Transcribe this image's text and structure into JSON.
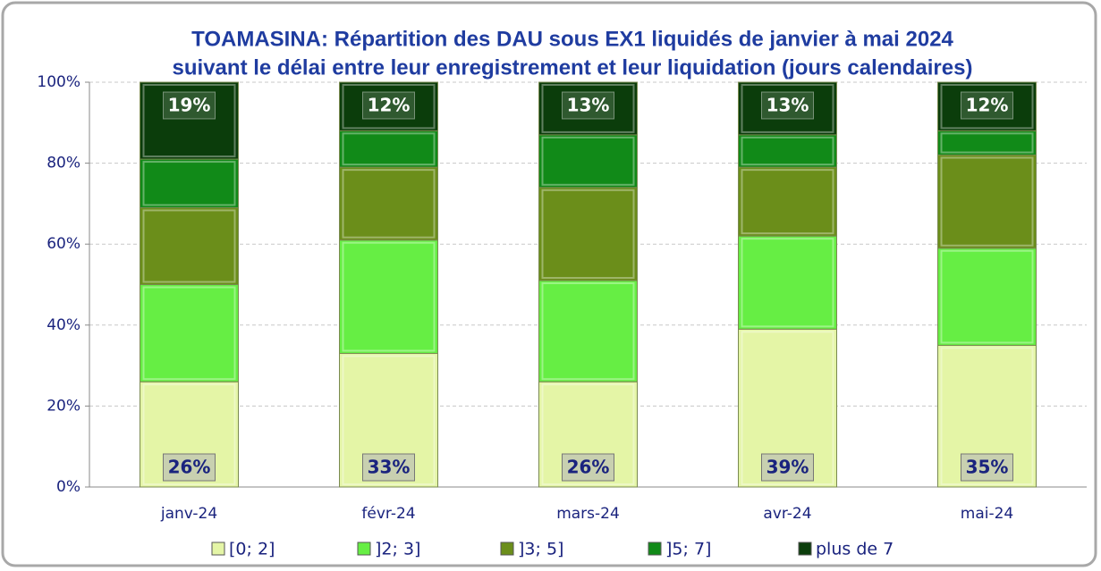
{
  "chart_data": {
    "type": "stacked_bar",
    "title": "TOAMASINA: Répartition des DAU sous EX1 liquidés de janvier à mai 2024",
    "subtitle": "suivant le délai entre leur enregistrement et leur liquidation (jours calendaires)",
    "categories": [
      "janv-24",
      "févr-24",
      "mars-24",
      "avr-24",
      "mai-24"
    ],
    "series": [
      {
        "name": "[0; 2]",
        "color": "#e4f5a6",
        "values": [
          26,
          33,
          26,
          39,
          35
        ],
        "value_labels": [
          "26%",
          "33%",
          "26%",
          "39%",
          "35%"
        ]
      },
      {
        "name": "]2; 3]",
        "color": "#66ee44",
        "values": [
          24,
          28,
          25,
          23,
          24
        ]
      },
      {
        "name": "]3; 5]",
        "color": "#6b8e1a",
        "values": [
          19,
          18,
          23,
          17,
          23
        ]
      },
      {
        "name": "]5; 7]",
        "color": "#118a18",
        "values": [
          12,
          9,
          13,
          8,
          6
        ]
      },
      {
        "name": "plus de 7",
        "color": "#0b3d0b",
        "values": [
          19,
          12,
          13,
          13,
          12
        ],
        "value_labels": [
          "19%",
          "12%",
          "13%",
          "13%",
          "12%"
        ]
      }
    ],
    "ylim": [
      0,
      100
    ],
    "yticks": [
      {
        "value": 0,
        "label": "0%"
      },
      {
        "value": 20,
        "label": "20%"
      },
      {
        "value": 40,
        "label": "40%"
      },
      {
        "value": 60,
        "label": "60%"
      },
      {
        "value": 80,
        "label": "80%"
      },
      {
        "value": 100,
        "label": "100%"
      }
    ],
    "grid": true,
    "legend": "bottom"
  }
}
